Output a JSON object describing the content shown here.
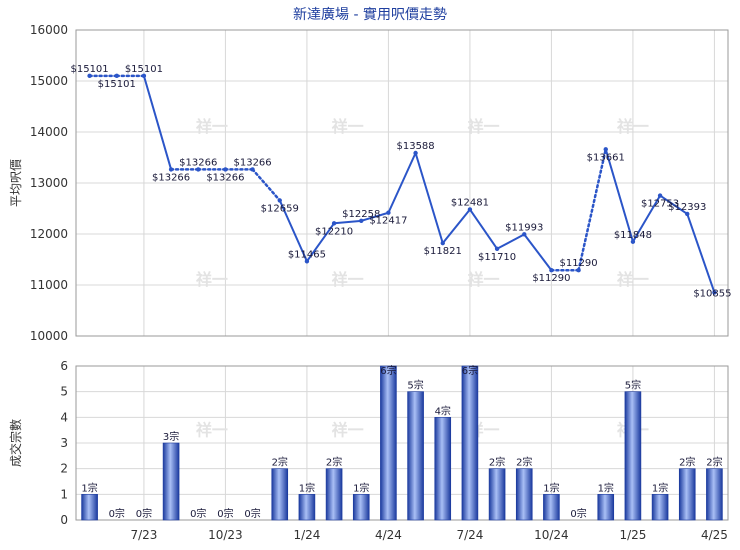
{
  "chart_data": [
    {
      "type": "line",
      "title": "新達廣場 - 實用呎價走勢",
      "ylabel": "平均呎價",
      "ylim": [
        10000,
        16000
      ],
      "yticks": [
        10000,
        11000,
        12000,
        13000,
        14000,
        15000,
        16000
      ],
      "grid": true,
      "series": [
        {
          "values": [
            15101,
            15101,
            15101,
            13266,
            13266,
            13266,
            13266,
            12659,
            11465,
            12210,
            12258,
            12417,
            13588,
            11821,
            12481,
            11710,
            11993,
            11290,
            11290,
            13661,
            11848,
            12753,
            12393,
            10855
          ],
          "labels": [
            "$15101",
            "$15101",
            "$15101",
            "$13266",
            "$13266",
            "$13266",
            "$13266",
            "$12659",
            "$11465",
            "$12210",
            "$12258",
            "$12417",
            "$13588",
            "$11821",
            "$12481",
            "$11710",
            "$11993",
            "$11290",
            "$11290",
            "$13661",
            "$11848",
            "$12753",
            "$12393",
            "$10855"
          ],
          "carried_forward": [
            false,
            true,
            false,
            false,
            true,
            false,
            true,
            false,
            false,
            false,
            false,
            false,
            false,
            false,
            false,
            false,
            false,
            false,
            true,
            false,
            false,
            false,
            false,
            false
          ]
        }
      ]
    },
    {
      "type": "bar",
      "ylabel": "成交宗數",
      "ylim": [
        0,
        6
      ],
      "yticks": [
        0,
        1,
        2,
        3,
        4,
        5,
        6
      ],
      "grid": true,
      "values": [
        1,
        0,
        0,
        3,
        0,
        0,
        0,
        2,
        1,
        2,
        1,
        6,
        5,
        4,
        6,
        2,
        2,
        1,
        0,
        1,
        5,
        1,
        2,
        2
      ],
      "bar_labels": [
        "1宗",
        "0宗",
        "0宗",
        "3宗",
        "0宗",
        "0宗",
        "0宗",
        "2宗",
        "1宗",
        "2宗",
        "1宗",
        "6宗",
        "5宗",
        "4宗",
        "6宗",
        "2宗",
        "2宗",
        "1宗",
        "0宗",
        "1宗",
        "5宗",
        "1宗",
        "2宗",
        "2宗"
      ],
      "x_ticks": [
        {
          "index": 2.5,
          "label": "7/23"
        },
        {
          "index": 5.5,
          "label": "10/23"
        },
        {
          "index": 8.5,
          "label": "1/24"
        },
        {
          "index": 11.5,
          "label": "4/24"
        },
        {
          "index": 14.5,
          "label": "7/24"
        },
        {
          "index": 17.5,
          "label": "10/24"
        },
        {
          "index": 20.5,
          "label": "1/25"
        },
        {
          "index": 23.5,
          "label": "4/25"
        }
      ]
    }
  ],
  "watermark": "祥一",
  "colors": {
    "line": "#2b55c8",
    "bar_light": "#9db4f0",
    "bar_dark": "#1b3a9e",
    "title": "#1f3f9f"
  }
}
